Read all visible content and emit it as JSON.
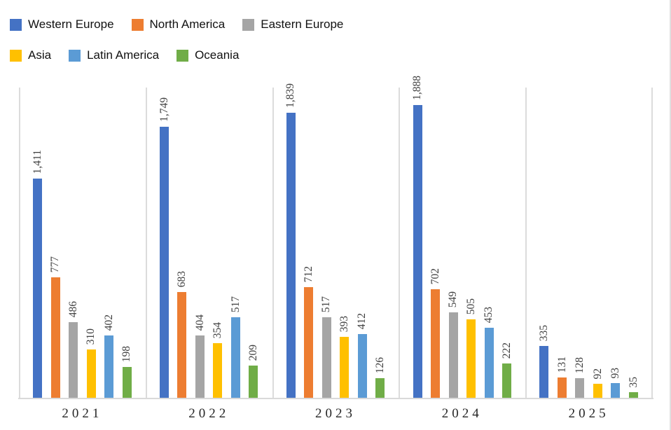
{
  "chart_data": {
    "type": "bar",
    "title": "",
    "xlabel": "",
    "ylabel": "",
    "categories": [
      "2021",
      "2022",
      "2023",
      "2024",
      "2025"
    ],
    "series": [
      {
        "name": "Western Europe",
        "color": "#4472C4",
        "values": [
          1411,
          1749,
          1839,
          1888,
          335
        ],
        "labels": [
          "1,411",
          "1,749",
          "1,839",
          "1,888",
          "335"
        ]
      },
      {
        "name": "North America",
        "color": "#ED7D31",
        "values": [
          777,
          683,
          712,
          702,
          131
        ],
        "labels": [
          "777",
          "683",
          "712",
          "702",
          "131"
        ]
      },
      {
        "name": "Eastern Europe",
        "color": "#A5A5A5",
        "values": [
          486,
          404,
          517,
          549,
          128
        ],
        "labels": [
          "486",
          "404",
          "517",
          "549",
          "128"
        ]
      },
      {
        "name": "Asia",
        "color": "#FFC000",
        "values": [
          310,
          354,
          393,
          505,
          92
        ],
        "labels": [
          "310",
          "354",
          "393",
          "505",
          "92"
        ]
      },
      {
        "name": "Latin America",
        "color": "#5B9BD5",
        "values": [
          402,
          517,
          412,
          453,
          93
        ],
        "labels": [
          "402",
          "517",
          "412",
          "453",
          "93"
        ]
      },
      {
        "name": "Oceania",
        "color": "#70AD47",
        "values": [
          198,
          209,
          126,
          222,
          35
        ],
        "labels": [
          "198",
          "209",
          "126",
          "222",
          "35"
        ]
      }
    ],
    "ylim": [
      0,
      2000
    ],
    "grid": "vertical category separators only",
    "axis_line_color": "#d9d9d9",
    "separator_color": "#dcdcdc",
    "data_label_rotation": -90,
    "legend_position": "top-left",
    "legend_rows": [
      [
        "Western Europe",
        "North America",
        "Eastern Europe"
      ],
      [
        "Asia",
        "Latin America",
        "Oceania"
      ]
    ]
  }
}
